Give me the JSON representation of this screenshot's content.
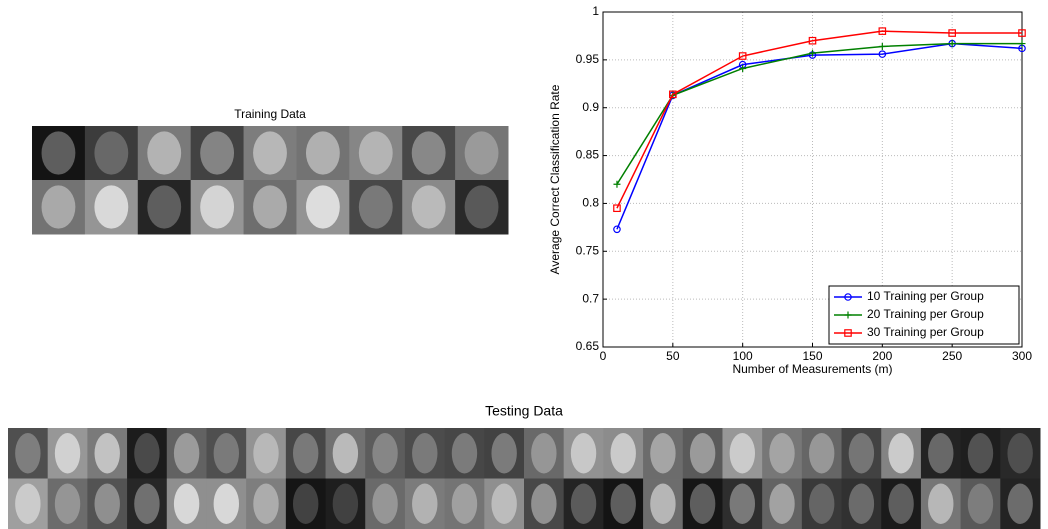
{
  "training_title": "Training Data",
  "testing_title": "Testing Data",
  "chart_data": {
    "type": "line",
    "xlabel": "Number of Measurements (m)",
    "ylabel": "Average Correct Classification Rate",
    "x": [
      10,
      50,
      100,
      150,
      200,
      250,
      300
    ],
    "series": [
      {
        "name": "10 Training per Group",
        "color": "#0000ff",
        "marker": "o",
        "values": [
          0.773,
          0.913,
          0.945,
          0.955,
          0.956,
          0.967,
          0.962
        ]
      },
      {
        "name": "20 Training per Group",
        "color": "#008000",
        "marker": "+",
        "values": [
          0.82,
          0.913,
          0.941,
          0.957,
          0.964,
          0.967,
          0.967
        ]
      },
      {
        "name": "30 Training per Group",
        "color": "#ff0000",
        "marker": "s",
        "values": [
          0.795,
          0.914,
          0.954,
          0.97,
          0.98,
          0.978,
          0.978
        ]
      }
    ],
    "xlim": [
      0,
      300
    ],
    "xticks": [
      0,
      50,
      100,
      150,
      200,
      250,
      300
    ],
    "ylim": [
      0.65,
      1
    ],
    "yticks": [
      0.65,
      0.7,
      0.75,
      0.8,
      0.85,
      0.9,
      0.95,
      1
    ],
    "grid": true,
    "legend": "lower right"
  }
}
